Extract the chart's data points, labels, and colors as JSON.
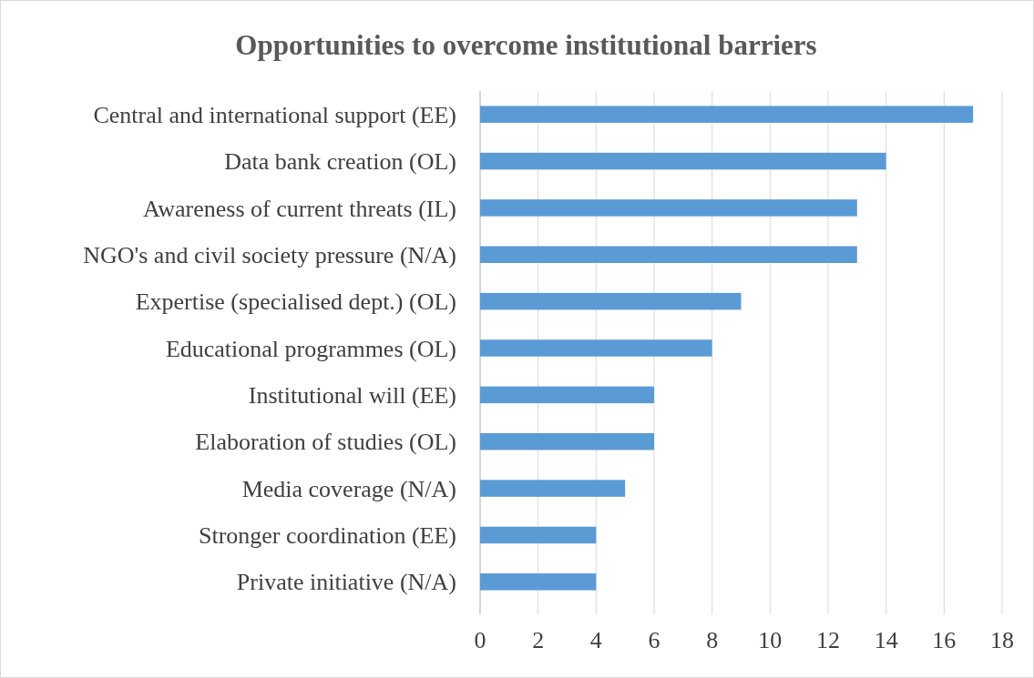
{
  "chart_data": {
    "type": "bar",
    "orientation": "horizontal",
    "title": "Opportunities to overcome institutional barriers",
    "categories": [
      "Central and international support (EE)",
      "Data bank creation (OL)",
      "Awareness of current threats (IL)",
      "NGO's and civil society pressure (N/A)",
      "Expertise (specialised dept.) (OL)",
      "Educational programmes (OL)",
      "Institutional will (EE)",
      "Elaboration of studies (OL)",
      "Media coverage (N/A)",
      "Stronger coordination (EE)",
      "Private initiative (N/A)"
    ],
    "values": [
      17,
      14,
      13,
      13,
      9,
      8,
      6,
      6,
      5,
      4,
      4
    ],
    "color": "#5b9bd5",
    "xlim": [
      0,
      18
    ],
    "xticks": [
      0,
      2,
      4,
      6,
      8,
      10,
      12,
      14,
      16,
      18
    ],
    "grid": "x"
  }
}
